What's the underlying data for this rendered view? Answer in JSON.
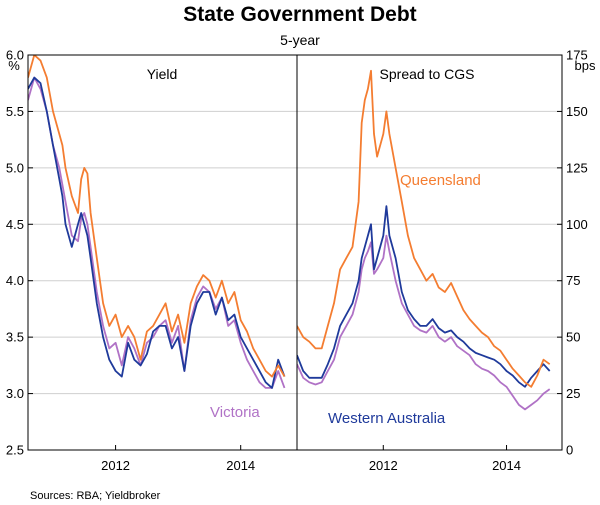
{
  "chart_data": {
    "type": "line",
    "title": "State Government Debt",
    "subtitle": "5-year",
    "source": "Sources:   RBA; Yieldbroker",
    "x_tick_labels": [
      "2012",
      "2014"
    ],
    "x_ticks": [
      2012,
      2014
    ],
    "xlim": [
      2010.6,
      2014.9
    ],
    "panels": [
      {
        "title": "Yield",
        "unit": "%",
        "ylim": [
          2.5,
          6.0
        ],
        "y_ticks": [
          2.5,
          3.0,
          3.5,
          4.0,
          4.5,
          5.0,
          5.5,
          6.0
        ],
        "y_tick_labels": [
          "2.5",
          "3.0",
          "3.5",
          "4.0",
          "4.5",
          "5.0",
          "5.5",
          "6.0"
        ],
        "annotations": [
          {
            "text": "Victoria",
            "color": "#b072c6"
          }
        ],
        "series": [
          {
            "name": "",
            "color": "#f47d31",
            "x": [
              2010.6,
              2010.7,
              2010.8,
              2010.9,
              2011.0,
              2011.1,
              2011.15,
              2011.2,
              2011.3,
              2011.4,
              2011.45,
              2011.5,
              2011.55,
              2011.6,
              2011.7,
              2011.8,
              2011.9,
              2012.0,
              2012.1,
              2012.2,
              2012.3,
              2012.4,
              2012.5,
              2012.6,
              2012.7,
              2012.8,
              2012.9,
              2013.0,
              2013.1,
              2013.2,
              2013.3,
              2013.4,
              2013.5,
              2013.6,
              2013.7,
              2013.8,
              2013.9,
              2014.0,
              2014.1,
              2014.2,
              2014.3,
              2014.4,
              2014.5,
              2014.6,
              2014.7
            ],
            "y": [
              5.8,
              6.0,
              5.95,
              5.8,
              5.5,
              5.3,
              5.2,
              5.0,
              4.75,
              4.6,
              4.9,
              5.0,
              4.95,
              4.6,
              4.2,
              3.8,
              3.6,
              3.7,
              3.5,
              3.6,
              3.5,
              3.3,
              3.55,
              3.6,
              3.7,
              3.8,
              3.55,
              3.7,
              3.45,
              3.8,
              3.95,
              4.05,
              4.0,
              3.85,
              4.0,
              3.8,
              3.9,
              3.65,
              3.55,
              3.4,
              3.3,
              3.2,
              3.15,
              3.25,
              3.15
            ]
          },
          {
            "name": "Western Australia",
            "color": "#1f3a9b",
            "x": [
              2010.6,
              2010.7,
              2010.8,
              2010.9,
              2011.0,
              2011.1,
              2011.15,
              2011.2,
              2011.3,
              2011.4,
              2011.45,
              2011.5,
              2011.55,
              2011.6,
              2011.7,
              2011.8,
              2011.9,
              2012.0,
              2012.1,
              2012.2,
              2012.3,
              2012.4,
              2012.5,
              2012.6,
              2012.7,
              2012.8,
              2012.9,
              2013.0,
              2013.1,
              2013.2,
              2013.3,
              2013.4,
              2013.5,
              2013.6,
              2013.7,
              2013.8,
              2013.9,
              2014.0,
              2014.1,
              2014.2,
              2014.3,
              2014.4,
              2014.5,
              2014.6,
              2014.7
            ],
            "y": [
              5.7,
              5.8,
              5.75,
              5.5,
              5.2,
              4.9,
              4.75,
              4.5,
              4.3,
              4.5,
              4.6,
              4.5,
              4.4,
              4.2,
              3.8,
              3.5,
              3.3,
              3.2,
              3.15,
              3.45,
              3.3,
              3.25,
              3.35,
              3.55,
              3.6,
              3.6,
              3.4,
              3.5,
              3.2,
              3.6,
              3.8,
              3.9,
              3.9,
              3.7,
              3.85,
              3.65,
              3.7,
              3.5,
              3.4,
              3.3,
              3.2,
              3.1,
              3.05,
              3.3,
              3.15
            ]
          },
          {
            "name": "Victoria",
            "color": "#b072c6",
            "x": [
              2010.6,
              2010.7,
              2010.8,
              2010.9,
              2011.0,
              2011.1,
              2011.15,
              2011.2,
              2011.3,
              2011.4,
              2011.45,
              2011.5,
              2011.55,
              2011.6,
              2011.7,
              2011.8,
              2011.9,
              2012.0,
              2012.1,
              2012.2,
              2012.3,
              2012.4,
              2012.5,
              2012.6,
              2012.7,
              2012.8,
              2012.9,
              2013.0,
              2013.1,
              2013.2,
              2013.3,
              2013.4,
              2013.5,
              2013.6,
              2013.7,
              2013.8,
              2013.9,
              2014.0,
              2014.1,
              2014.2,
              2014.3,
              2014.4,
              2014.5,
              2014.6,
              2014.7
            ],
            "y": [
              5.6,
              5.8,
              5.7,
              5.5,
              5.2,
              5.0,
              4.85,
              4.7,
              4.4,
              4.35,
              4.55,
              4.6,
              4.5,
              4.3,
              3.9,
              3.6,
              3.4,
              3.45,
              3.25,
              3.5,
              3.4,
              3.25,
              3.45,
              3.5,
              3.6,
              3.65,
              3.45,
              3.6,
              3.2,
              3.65,
              3.85,
              3.95,
              3.9,
              3.75,
              3.85,
              3.6,
              3.65,
              3.45,
              3.3,
              3.2,
              3.1,
              3.05,
              3.05,
              3.2,
              3.05
            ]
          }
        ]
      },
      {
        "title": "Spread to CGS",
        "unit": "bps",
        "ylim": [
          0,
          175
        ],
        "y_ticks": [
          0,
          25,
          50,
          75,
          100,
          125,
          150,
          175
        ],
        "y_tick_labels": [
          "0",
          "25",
          "50",
          "75",
          "100",
          "125",
          "150",
          "175"
        ],
        "annotations": [
          {
            "text": "Queensland",
            "color": "#f47d31"
          },
          {
            "text": "Western Australia",
            "color": "#1f3a9b"
          }
        ],
        "series": [
          {
            "name": "Queensland",
            "color": "#f47d31",
            "x": [
              2010.6,
              2010.7,
              2010.8,
              2010.9,
              2011.0,
              2011.1,
              2011.2,
              2011.3,
              2011.4,
              2011.5,
              2011.6,
              2011.65,
              2011.7,
              2011.75,
              2011.8,
              2011.85,
              2011.9,
              2012.0,
              2012.05,
              2012.1,
              2012.2,
              2012.3,
              2012.4,
              2012.5,
              2012.6,
              2012.7,
              2012.8,
              2012.9,
              2013.0,
              2013.1,
              2013.2,
              2013.3,
              2013.4,
              2013.5,
              2013.6,
              2013.7,
              2013.8,
              2013.9,
              2014.0,
              2014.1,
              2014.2,
              2014.3,
              2014.4,
              2014.5,
              2014.6,
              2014.7
            ],
            "y": [
              55,
              50,
              48,
              45,
              45,
              55,
              65,
              80,
              85,
              90,
              110,
              145,
              155,
              160,
              168,
              140,
              130,
              140,
              150,
              140,
              125,
              110,
              95,
              85,
              80,
              75,
              78,
              72,
              70,
              74,
              68,
              62,
              58,
              55,
              52,
              50,
              46,
              44,
              40,
              36,
              33,
              30,
              28,
              33,
              40,
              38
            ]
          },
          {
            "name": "Western Australia",
            "color": "#1f3a9b",
            "x": [
              2010.6,
              2010.7,
              2010.8,
              2010.9,
              2011.0,
              2011.1,
              2011.2,
              2011.3,
              2011.4,
              2011.5,
              2011.6,
              2011.65,
              2011.7,
              2011.75,
              2011.8,
              2011.85,
              2011.9,
              2012.0,
              2012.05,
              2012.1,
              2012.2,
              2012.3,
              2012.4,
              2012.5,
              2012.6,
              2012.7,
              2012.8,
              2012.9,
              2013.0,
              2013.1,
              2013.2,
              2013.3,
              2013.4,
              2013.5,
              2013.6,
              2013.7,
              2013.8,
              2013.9,
              2014.0,
              2014.1,
              2014.2,
              2014.3,
              2014.4,
              2014.5,
              2014.6,
              2014.7
            ],
            "y": [
              42,
              35,
              32,
              32,
              32,
              38,
              45,
              55,
              60,
              65,
              75,
              85,
              90,
              95,
              100,
              80,
              85,
              95,
              108,
              95,
              85,
              70,
              62,
              58,
              55,
              55,
              58,
              54,
              52,
              53,
              50,
              48,
              45,
              43,
              42,
              41,
              40,
              38,
              35,
              33,
              30,
              28,
              32,
              35,
              38,
              35
            ]
          },
          {
            "name": "Victoria",
            "color": "#b072c6",
            "x": [
              2010.6,
              2010.7,
              2010.8,
              2010.9,
              2011.0,
              2011.1,
              2011.2,
              2011.3,
              2011.4,
              2011.5,
              2011.6,
              2011.65,
              2011.7,
              2011.75,
              2011.8,
              2011.85,
              2011.9,
              2012.0,
              2012.05,
              2012.1,
              2012.2,
              2012.3,
              2012.4,
              2012.5,
              2012.6,
              2012.7,
              2012.8,
              2012.9,
              2013.0,
              2013.1,
              2013.2,
              2013.3,
              2013.4,
              2013.5,
              2013.6,
              2013.7,
              2013.8,
              2013.9,
              2014.0,
              2014.1,
              2014.2,
              2014.3,
              2014.4,
              2014.5,
              2014.6,
              2014.7
            ],
            "y": [
              38,
              32,
              30,
              29,
              30,
              35,
              40,
              50,
              55,
              60,
              70,
              80,
              85,
              88,
              92,
              78,
              80,
              85,
              95,
              88,
              75,
              65,
              60,
              55,
              53,
              52,
              55,
              50,
              48,
              50,
              46,
              44,
              42,
              38,
              36,
              35,
              33,
              30,
              28,
              24,
              20,
              18,
              20,
              22,
              25,
              27
            ]
          }
        ]
      }
    ]
  }
}
